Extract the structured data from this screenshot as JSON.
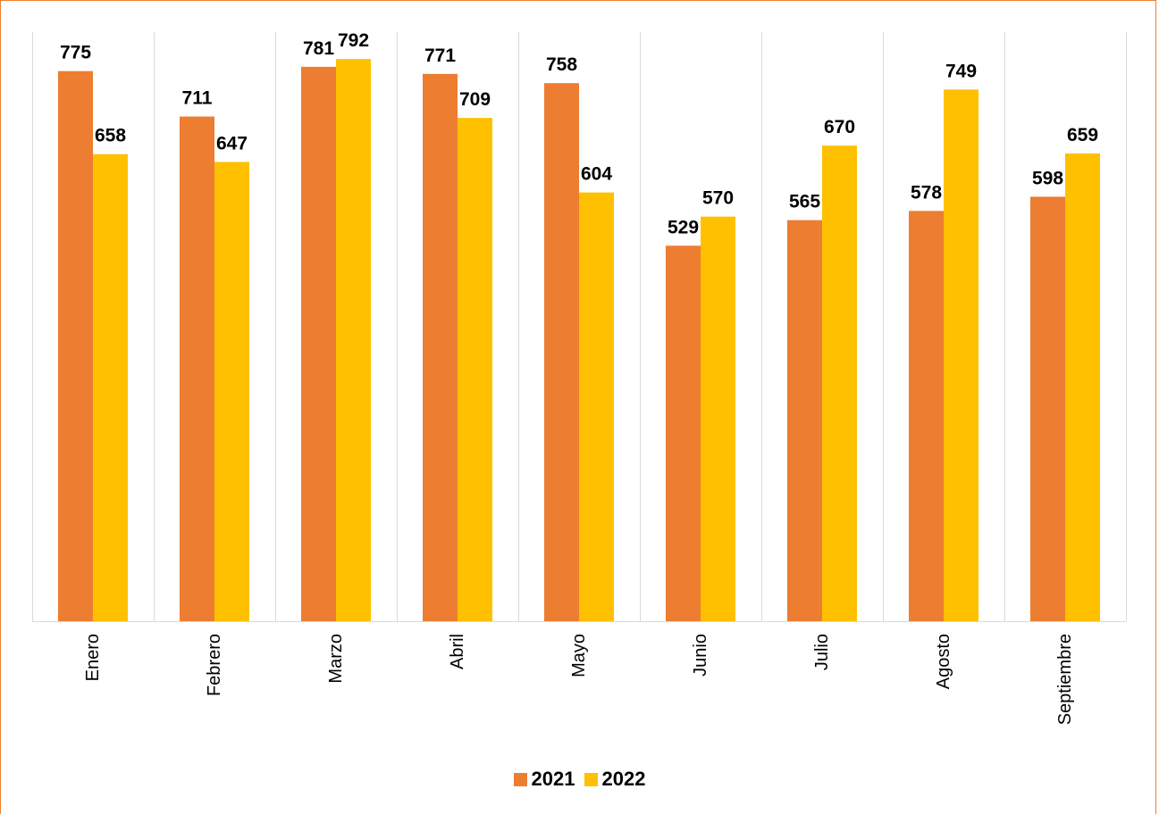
{
  "chart_data": {
    "type": "bar",
    "categories": [
      "Enero",
      "Febrero",
      "Marzo",
      "Abril",
      "Mayo",
      "Junio",
      "Julio",
      "Agosto",
      "Septiembre"
    ],
    "series": [
      {
        "name": "2021",
        "color": "#ed7d31",
        "values": [
          775,
          711,
          781,
          771,
          758,
          529,
          565,
          578,
          598
        ]
      },
      {
        "name": "2022",
        "color": "#ffc000",
        "values": [
          658,
          647,
          792,
          709,
          604,
          570,
          670,
          749,
          659
        ]
      }
    ],
    "title": "",
    "xlabel": "",
    "ylabel": "",
    "ylim": [
      0,
      850
    ],
    "grid": "vertical category separators",
    "legend_position": "bottom",
    "data_labels": true,
    "category_label_rotation": "vertical"
  }
}
